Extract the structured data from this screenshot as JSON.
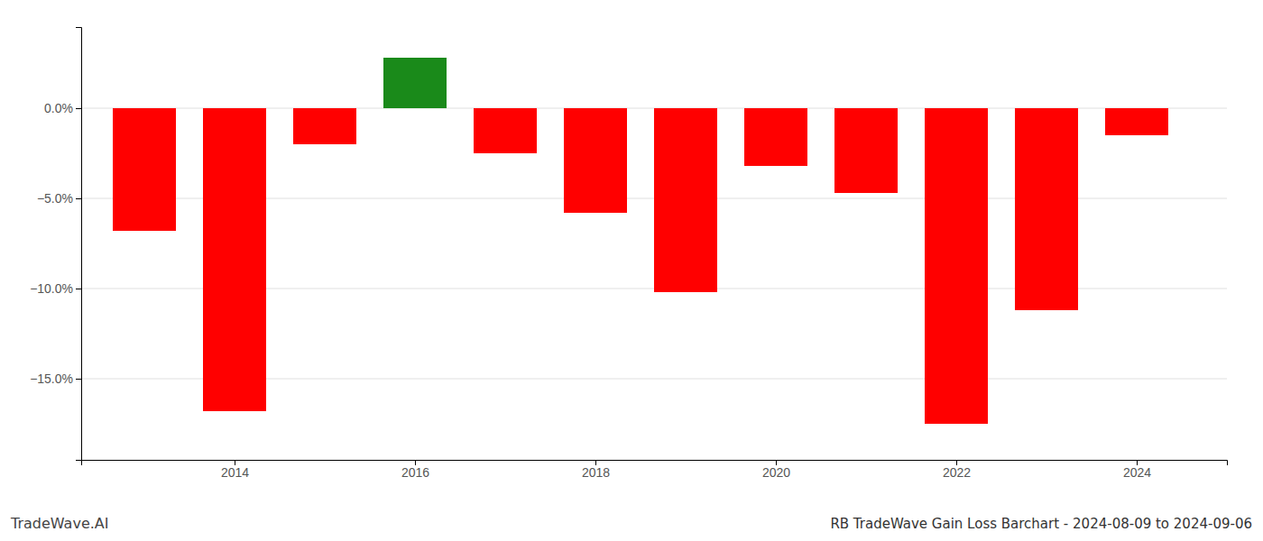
{
  "chart_data": {
    "type": "bar",
    "title": "RB TradeWave Gain Loss Barchart - 2024-08-09 to 2024-09-06",
    "annotations": [
      "TradeWave.AI"
    ],
    "x": [
      2013,
      2014,
      2015,
      2016,
      2017,
      2018,
      2019,
      2020,
      2021,
      2022,
      2023,
      2024
    ],
    "values": [
      -6.8,
      -16.8,
      -2.0,
      2.8,
      -2.5,
      -5.8,
      -10.2,
      -3.2,
      -4.7,
      -17.5,
      -11.2,
      -1.5
    ],
    "colors": [
      "#ff0000",
      "#ff0000",
      "#ff0000",
      "#1a8a1a",
      "#ff0000",
      "#ff0000",
      "#ff0000",
      "#ff0000",
      "#ff0000",
      "#ff0000",
      "#ff0000",
      "#ff0000"
    ],
    "xlim": [
      2012.3,
      2025.0
    ],
    "xticks": [
      2014,
      2016,
      2018,
      2020,
      2022,
      2024
    ],
    "ylim": [
      -19.5,
      4.5
    ],
    "yticks": [
      {
        "value": 0.0,
        "label": "0.0%"
      },
      {
        "value": -5.0,
        "label": "−5.0%"
      },
      {
        "value": -10.0,
        "label": "−10.0%"
      },
      {
        "value": -15.0,
        "label": "−15.0%"
      }
    ],
    "grid": true
  }
}
